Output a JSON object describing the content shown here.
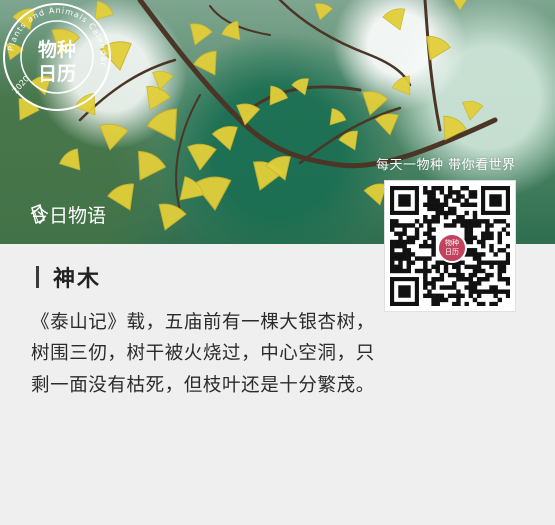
{
  "photo": {
    "alt_label": "ginkgo branch"
  },
  "stamp": {
    "ring_text": "Plants and Animals Calendar",
    "year": "2020",
    "line1": "物种",
    "line2": "日历"
  },
  "daily": {
    "label": "今日物语",
    "icon": "page-icon"
  },
  "promo": {
    "slogan": "每天一物种 带你看世界",
    "qr_badge_line1": "物种",
    "qr_badge_line2": "日历"
  },
  "article": {
    "title": "神木",
    "body": "《泰山记》载，五庙前有一棵大银杏树，树围三仞，树干被火烧过，中心空洞，只剩一面没有枯死，但枝叶还是十分繁茂。"
  },
  "colors": {
    "background": "#efefef",
    "stamp_red": "#c2425f",
    "leaf_yellow": "#e2cf3a"
  }
}
